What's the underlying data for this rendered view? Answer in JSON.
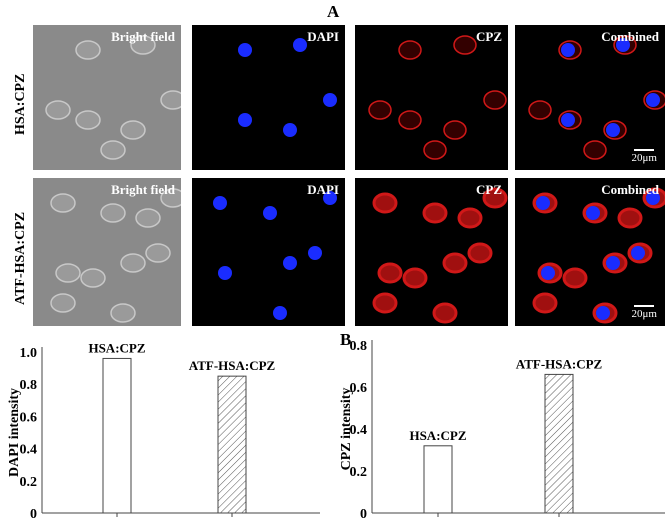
{
  "figure": {
    "panel_a_letter": "A",
    "panel_b_letter": "B",
    "rows": [
      "HSA:CPZ",
      "ATF-HSA:CPZ"
    ],
    "columns": [
      "Bright field",
      "DAPI",
      "CPZ",
      "Combined"
    ],
    "scale_bar": "20μm",
    "colors": {
      "dapi": "#1a2cff",
      "cpz": "#d01818",
      "bright_field": "#8a8a8a"
    }
  },
  "chart_data": [
    {
      "type": "bar",
      "categories": [
        "HSA:CPZ",
        "ATF-HSA:CPZ"
      ],
      "values": [
        0.96,
        0.85
      ],
      "ylabel": "DAPI intensity",
      "xlabel": "",
      "ylim": [
        0,
        1.0
      ],
      "yticks": [
        "0",
        "0.2",
        "0.4",
        "0.6",
        "0.8",
        "1.0"
      ],
      "fills": [
        "open",
        "hatched"
      ],
      "grid": false
    },
    {
      "type": "bar",
      "categories": [
        "HSA:CPZ",
        "ATF-HSA:CPZ"
      ],
      "values": [
        0.32,
        0.66
      ],
      "ylabel": "CPZ intensity",
      "xlabel": "",
      "ylim": [
        0,
        0.8
      ],
      "yticks": [
        "0",
        "0.2",
        "0.4",
        "0.6",
        "0.8"
      ],
      "fills": [
        "open",
        "hatched"
      ],
      "grid": false
    }
  ]
}
